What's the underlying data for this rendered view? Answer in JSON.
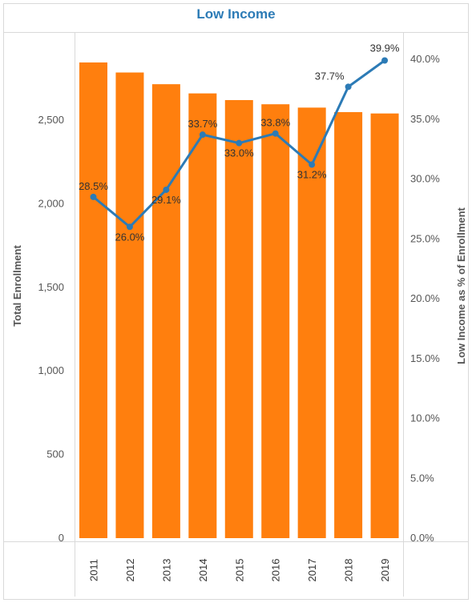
{
  "title": "Low Income",
  "colors": {
    "bar": "#ff7f0e",
    "line": "#2c7bb6",
    "title": "#2c7bb6",
    "axis_text": "#555555",
    "label_text": "#333333"
  },
  "chart_data": {
    "type": "bar",
    "title": "Low Income",
    "categories": [
      "2011",
      "2012",
      "2013",
      "2014",
      "2015",
      "2016",
      "2017",
      "2018",
      "2019"
    ],
    "series": [
      {
        "type": "bar",
        "axis": "left",
        "values": [
          2845,
          2785,
          2715,
          2660,
          2620,
          2595,
          2575,
          2548,
          2540
        ]
      },
      {
        "type": "line",
        "axis": "right",
        "values": [
          28.5,
          26.0,
          29.1,
          33.7,
          33.0,
          33.8,
          31.2,
          37.7,
          39.9
        ],
        "labels": [
          "28.5%",
          "26.0%",
          "29.1%",
          "33.7%",
          "33.0%",
          "33.8%",
          "31.2%",
          "37.7%",
          "39.9%"
        ]
      }
    ],
    "ylabel": "Total Enrollment",
    "y2label": "Low Income as % of Enrollment",
    "ylim": [
      0,
      2960
    ],
    "y2lim": [
      0,
      42
    ],
    "yticks": [
      0,
      500,
      1000,
      1500,
      2000,
      2500
    ],
    "ytick_labels": [
      "0",
      "500",
      "1,000",
      "1,500",
      "2,000",
      "2,500"
    ],
    "y2ticks": [
      0,
      5,
      10,
      15,
      20,
      25,
      30,
      35,
      40
    ],
    "y2tick_labels": [
      "0.0%",
      "5.0%",
      "10.0%",
      "15.0%",
      "20.0%",
      "25.0%",
      "30.0%",
      "35.0%",
      "40.0%"
    ],
    "grid": false,
    "legend": "none"
  }
}
